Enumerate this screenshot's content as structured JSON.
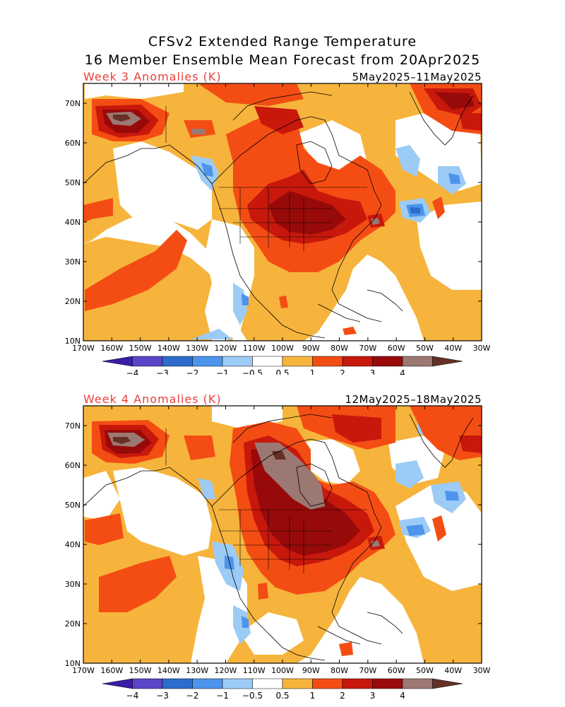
{
  "title_line1": "CFSv2 Extended Range Temperature",
  "title_line2": "16 Member Ensemble Mean Forecast from 20Apr2025",
  "panels": [
    {
      "label": "Week 3 Anomalies (K)",
      "dates": "5May2025–11May2025"
    },
    {
      "label": "Week 4 Anomalies (K)",
      "dates": "12May2025–18May2025"
    }
  ],
  "lat_labels": [
    "70N",
    "60N",
    "50N",
    "40N",
    "30N",
    "20N",
    "10N"
  ],
  "lon_labels": [
    "170W",
    "160W",
    "150W",
    "140W",
    "130W",
    "120W",
    "110W",
    "100W",
    "90W",
    "80W",
    "70W",
    "60W",
    "50W",
    "40W",
    "30W"
  ],
  "colorbar": {
    "labels": [
      "−4",
      "−3",
      "−2",
      "−1",
      "−0.5",
      "0.5",
      "1",
      "2",
      "3",
      "4"
    ],
    "colors": [
      "#3a1ca8",
      "#5a44c8",
      "#2c6ccc",
      "#4c94ec",
      "#9ccbf6",
      "#ffffff",
      "#f6b43c",
      "#f44d14",
      "#c8180c",
      "#980a0a",
      "#9c7872",
      "#663026"
    ]
  },
  "map_colors": {
    "c05": "#f6b43c",
    "c1": "#f44d14",
    "c2": "#c8180c",
    "c3": "#980a0a",
    "c4": "#9c7872",
    "c5": "#663026",
    "n05": "#9ccbf6",
    "n1": "#4c94ec",
    "n2": "#2c6ccc"
  }
}
